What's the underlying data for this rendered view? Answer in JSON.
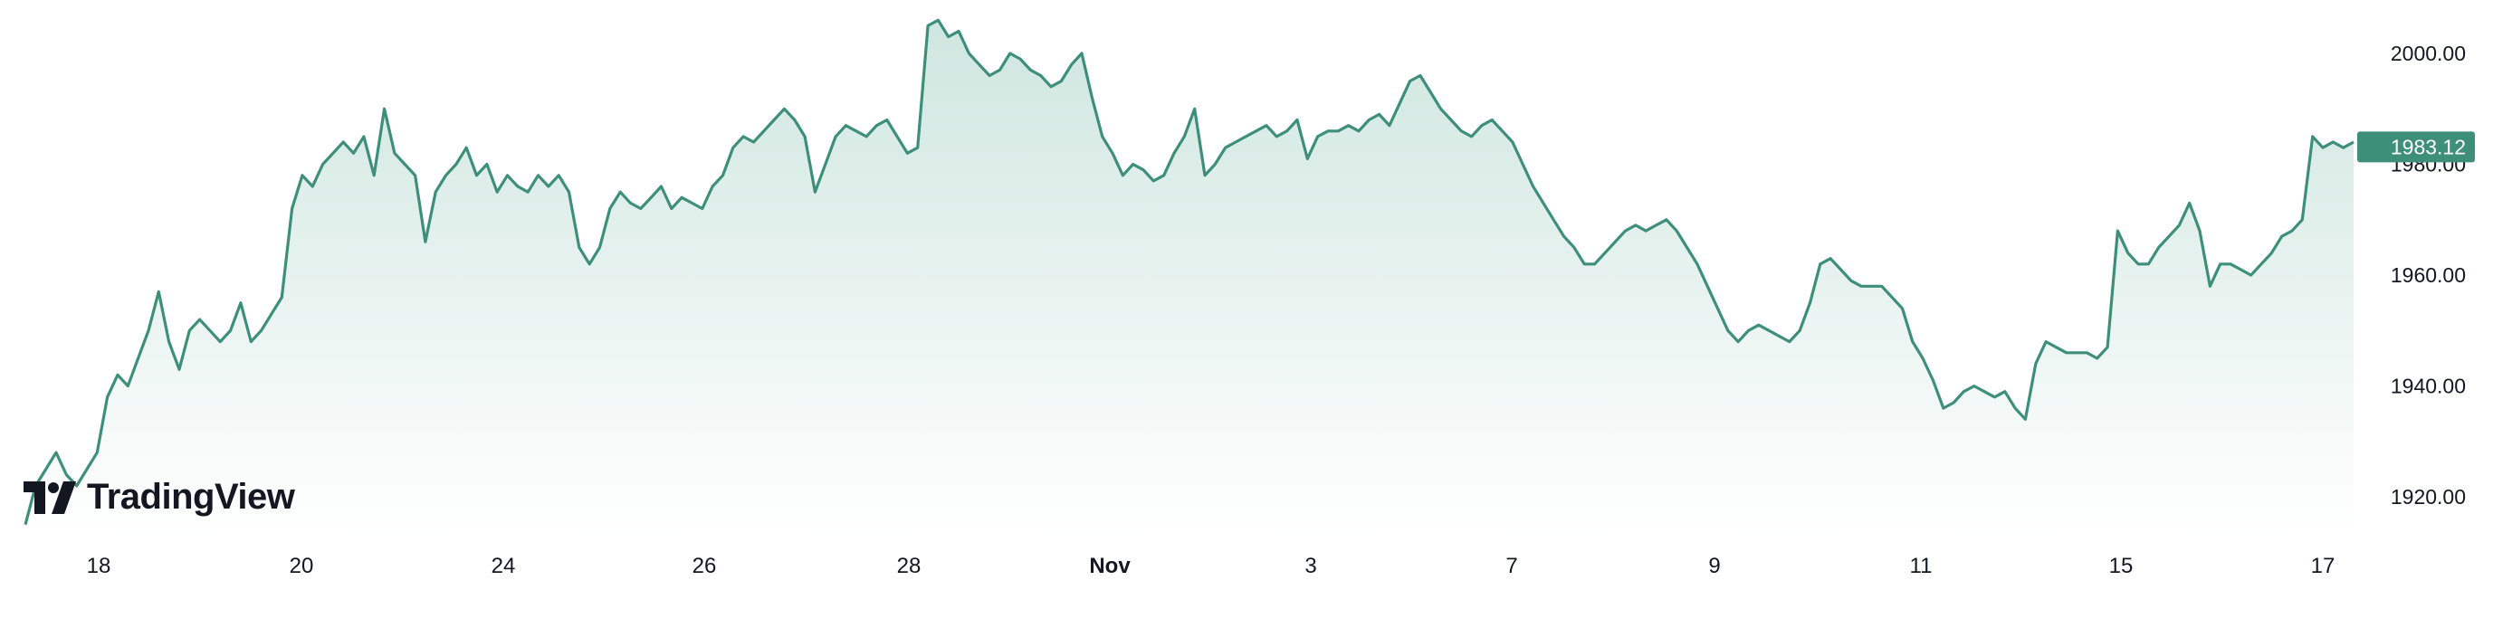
{
  "colors": {
    "line": "#3d8f7a",
    "fill_top": "#cfe6df",
    "fill_bottom": "#ffffff",
    "price_label_bg": "#3d8f7a",
    "text": "#131722"
  },
  "branding": {
    "logo_text": "TradingView",
    "logo_icon": "tradingview-logo-icon"
  },
  "chart_data": {
    "type": "area",
    "title": "",
    "xlabel": "",
    "ylabel": "",
    "ylim": [
      1913,
      2008
    ],
    "y_ticks": [
      "2000.00",
      "1980.00",
      "1960.00",
      "1940.00",
      "1920.00"
    ],
    "x_ticks": [
      {
        "label": "18",
        "bold": false
      },
      {
        "label": "20",
        "bold": false
      },
      {
        "label": "24",
        "bold": false
      },
      {
        "label": "26",
        "bold": false
      },
      {
        "label": "28",
        "bold": false
      },
      {
        "label": "Nov",
        "bold": true
      },
      {
        "label": "3",
        "bold": false
      },
      {
        "label": "7",
        "bold": false
      },
      {
        "label": "9",
        "bold": false
      },
      {
        "label": "11",
        "bold": false
      },
      {
        "label": "15",
        "bold": false
      },
      {
        "label": "17",
        "bold": false
      }
    ],
    "last_price": "1983.12",
    "series": [
      {
        "values": [
          1915,
          1922,
          1925,
          1928,
          1924,
          1922,
          1925,
          1928,
          1938,
          1942,
          1940,
          1945,
          1950,
          1957,
          1948,
          1943,
          1950,
          1952,
          1950,
          1948,
          1950,
          1955,
          1948,
          1950,
          1953,
          1956,
          1972,
          1978,
          1976,
          1980,
          1982,
          1984,
          1982,
          1985,
          1978,
          1990,
          1982,
          1980,
          1978,
          1966,
          1975,
          1978,
          1980,
          1983,
          1978,
          1980,
          1975,
          1978,
          1976,
          1975,
          1978,
          1976,
          1978,
          1975,
          1965,
          1962,
          1965,
          1972,
          1975,
          1973,
          1972,
          1974,
          1976,
          1972,
          1974,
          1973,
          1972,
          1976,
          1978,
          1983,
          1985,
          1984,
          1986,
          1988,
          1990,
          1988,
          1985,
          1975,
          1980,
          1985,
          1987,
          1986,
          1985,
          1987,
          1988,
          1985,
          1982,
          1983,
          2005,
          2006,
          2003,
          2004,
          2000,
          1998,
          1996,
          1997,
          2000,
          1999,
          1997,
          1996,
          1994,
          1995,
          1998,
          2000,
          1992,
          1985,
          1982,
          1978,
          1980,
          1979,
          1977,
          1978,
          1982,
          1985,
          1990,
          1978,
          1980,
          1983,
          1984,
          1985,
          1986,
          1987,
          1985,
          1986,
          1988,
          1981,
          1985,
          1986,
          1986,
          1987,
          1986,
          1988,
          1989,
          1987,
          1991,
          1995,
          1996,
          1993,
          1990,
          1988,
          1986,
          1985,
          1987,
          1988,
          1986,
          1984,
          1980,
          1976,
          1973,
          1970,
          1967,
          1965,
          1962,
          1962,
          1964,
          1966,
          1968,
          1969,
          1968,
          1969,
          1970,
          1968,
          1965,
          1962,
          1958,
          1954,
          1950,
          1948,
          1950,
          1951,
          1950,
          1949,
          1948,
          1950,
          1955,
          1962,
          1963,
          1961,
          1959,
          1958,
          1958,
          1958,
          1956,
          1954,
          1948,
          1945,
          1941,
          1936,
          1937,
          1939,
          1940,
          1939,
          1938,
          1939,
          1936,
          1934,
          1944,
          1948,
          1947,
          1946,
          1946,
          1946,
          1945,
          1947,
          1968,
          1964,
          1962,
          1962,
          1965,
          1967,
          1969,
          1973,
          1968,
          1958,
          1962,
          1962,
          1961,
          1960,
          1962,
          1964,
          1967,
          1968,
          1970,
          1985,
          1983,
          1984,
          1983,
          1984
        ]
      }
    ]
  }
}
